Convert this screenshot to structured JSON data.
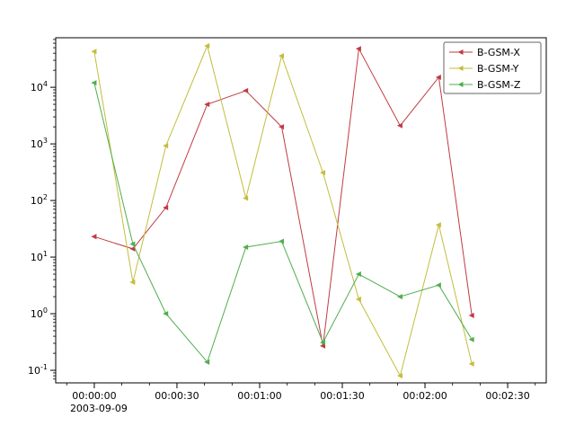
{
  "chart_data": {
    "type": "line",
    "title": "",
    "xlabel": "",
    "ylabel": "",
    "yscale": "log",
    "grid": false,
    "legend_position": "upper right",
    "xlim_seconds": [
      -14,
      164
    ],
    "ylim": [
      0.06,
      75000
    ],
    "x_date": "2003-09-09",
    "x_seconds": [
      0,
      14,
      26,
      41,
      55,
      68,
      83,
      96,
      111,
      125,
      137
    ],
    "series": [
      {
        "name": "B-GSM-X",
        "color": "#c03b42",
        "values": [
          23,
          14,
          75,
          5000,
          8700,
          2000,
          0.27,
          48000,
          2100,
          15000,
          0.93
        ]
      },
      {
        "name": "B-GSM-Y",
        "color": "#c3bd3d",
        "values": [
          43000,
          3.6,
          930,
          54000,
          110,
          36000,
          310,
          1.8,
          0.08,
          37,
          0.13
        ]
      },
      {
        "name": "B-GSM-Z",
        "color": "#4fae4f",
        "values": [
          12000,
          17,
          1.0,
          0.14,
          15,
          19,
          0.31,
          5,
          2,
          3.2,
          0.35
        ]
      }
    ],
    "x_ticks": [
      {
        "seconds": 0,
        "label": "00:00:00",
        "sublabel": "2003-09-09"
      },
      {
        "seconds": 30,
        "label": "00:00:30"
      },
      {
        "seconds": 60,
        "label": "00:01:00"
      },
      {
        "seconds": 90,
        "label": "00:01:30"
      },
      {
        "seconds": 120,
        "label": "00:02:00"
      },
      {
        "seconds": 150,
        "label": "00:02:30"
      }
    ],
    "x_minor_step_seconds": 10,
    "y_tick_exponents": [
      -1,
      0,
      1,
      2,
      3,
      4
    ],
    "axis_color": "#000000",
    "legend_border_color": "#666666",
    "marker": "triangle-left"
  }
}
